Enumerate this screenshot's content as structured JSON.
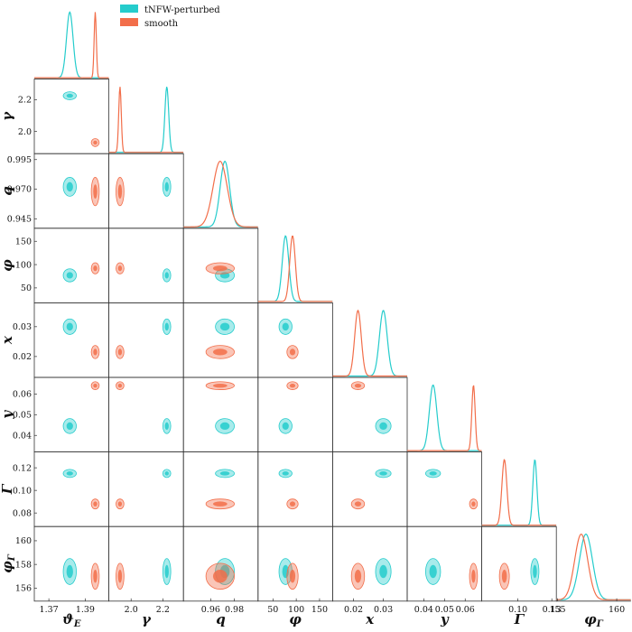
{
  "chart_data": {
    "type": "corner",
    "parameters": [
      {
        "key": "thetaE",
        "label": "ϑ",
        "sub": "E",
        "ticks": [
          1.37,
          1.39
        ],
        "tick_labels": [
          "1.37",
          "1.39"
        ],
        "range": [
          1.362,
          1.403
        ]
      },
      {
        "key": "gamma",
        "label": "γ",
        "sub": "",
        "ticks": [
          2.0,
          2.2
        ],
        "tick_labels": [
          "2.0",
          "2.2"
        ],
        "range": [
          1.86,
          2.33
        ]
      },
      {
        "key": "q",
        "label": "q",
        "sub": "",
        "ticks": [
          0.945,
          0.97,
          0.995
        ],
        "tick_labels": [
          "0.945",
          "0.970",
          "0.995"
        ],
        "x_ticks": [
          0.96,
          0.98
        ],
        "x_tick_labels": [
          "0.96",
          "0.98"
        ],
        "range": [
          0.937,
          1.0
        ]
      },
      {
        "key": "phi",
        "label": "φ",
        "sub": "",
        "ticks": [
          50,
          100,
          150
        ],
        "tick_labels": [
          "50",
          "100",
          "150"
        ],
        "range": [
          18,
          178
        ]
      },
      {
        "key": "x",
        "label": "x",
        "sub": "",
        "ticks": [
          0.02,
          0.03
        ],
        "tick_labels": [
          "0.02",
          "0.03"
        ],
        "range": [
          0.013,
          0.038
        ]
      },
      {
        "key": "y",
        "label": "y",
        "sub": "",
        "ticks": [
          0.04,
          0.05,
          0.06
        ],
        "tick_labels": [
          "0.04",
          "0.05",
          "0.06"
        ],
        "range": [
          0.032,
          0.068
        ]
      },
      {
        "key": "Gamma",
        "label": "Γ",
        "sub": "",
        "ticks": [
          0.08,
          0.1,
          0.12
        ],
        "tick_labels": [
          "0.08",
          "0.10",
          "0.12"
        ],
        "x_ticks": [
          0.1,
          0.13
        ],
        "x_tick_labels": [
          "0.10",
          "0.13"
        ],
        "range": [
          0.068,
          0.134
        ]
      },
      {
        "key": "phiG",
        "label": "φ",
        "sub": "Γ",
        "ticks": [
          156,
          158,
          160
        ],
        "tick_labels": [
          "156",
          "158",
          "160"
        ],
        "x_ticks": [
          155,
          160
        ],
        "x_tick_labels": [
          "155",
          "160"
        ],
        "range": [
          154.9,
          161.2
        ]
      }
    ],
    "series": [
      {
        "name": "tNFW-perturbed",
        "color": "#25cccc",
        "means": [
          1.3815,
          2.225,
          0.972,
          77,
          0.03,
          0.0445,
          0.115,
          157.4
        ],
        "sigmas": [
          0.0018,
          0.012,
          0.004,
          7,
          0.0013,
          0.0018,
          0.0018,
          0.55
        ]
      },
      {
        "name": "smooth",
        "color": "#f26e4a",
        "means": [
          1.3955,
          1.93,
          0.968,
          92,
          0.0215,
          0.064,
          0.088,
          157.0
        ],
        "sigmas": [
          0.0006,
          0.008,
          0.006,
          6,
          0.0011,
          0.0008,
          0.0022,
          0.55
        ]
      }
    ],
    "legend_position": "top"
  }
}
